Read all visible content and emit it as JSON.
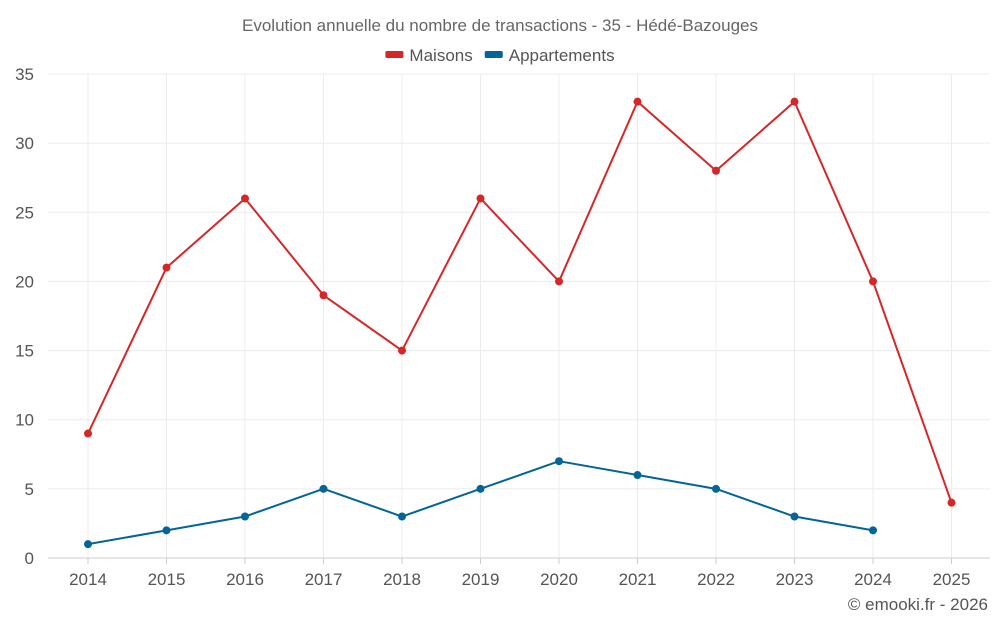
{
  "chart_data": {
    "type": "line",
    "title": "Evolution annuelle du nombre de transactions - 35 - Hédé-Bazouges",
    "x": [
      "2014",
      "2015",
      "2016",
      "2017",
      "2018",
      "2019",
      "2020",
      "2021",
      "2022",
      "2023",
      "2024",
      "2025"
    ],
    "ylim": [
      0,
      35
    ],
    "yticks": [
      0,
      5,
      10,
      15,
      20,
      25,
      30,
      35
    ],
    "grid": true,
    "legend_position": "top-center",
    "series": [
      {
        "name": "Maisons",
        "color": "#d62728",
        "values": [
          9,
          21,
          26,
          19,
          15,
          26,
          20,
          33,
          28,
          33,
          20,
          4
        ]
      },
      {
        "name": "Appartements",
        "color": "#03649a",
        "values": [
          1,
          2,
          3,
          5,
          3,
          5,
          7,
          6,
          5,
          3,
          2,
          null
        ]
      }
    ],
    "xlabel": "",
    "ylabel": ""
  },
  "credit": "© emooki.fr - 2026"
}
